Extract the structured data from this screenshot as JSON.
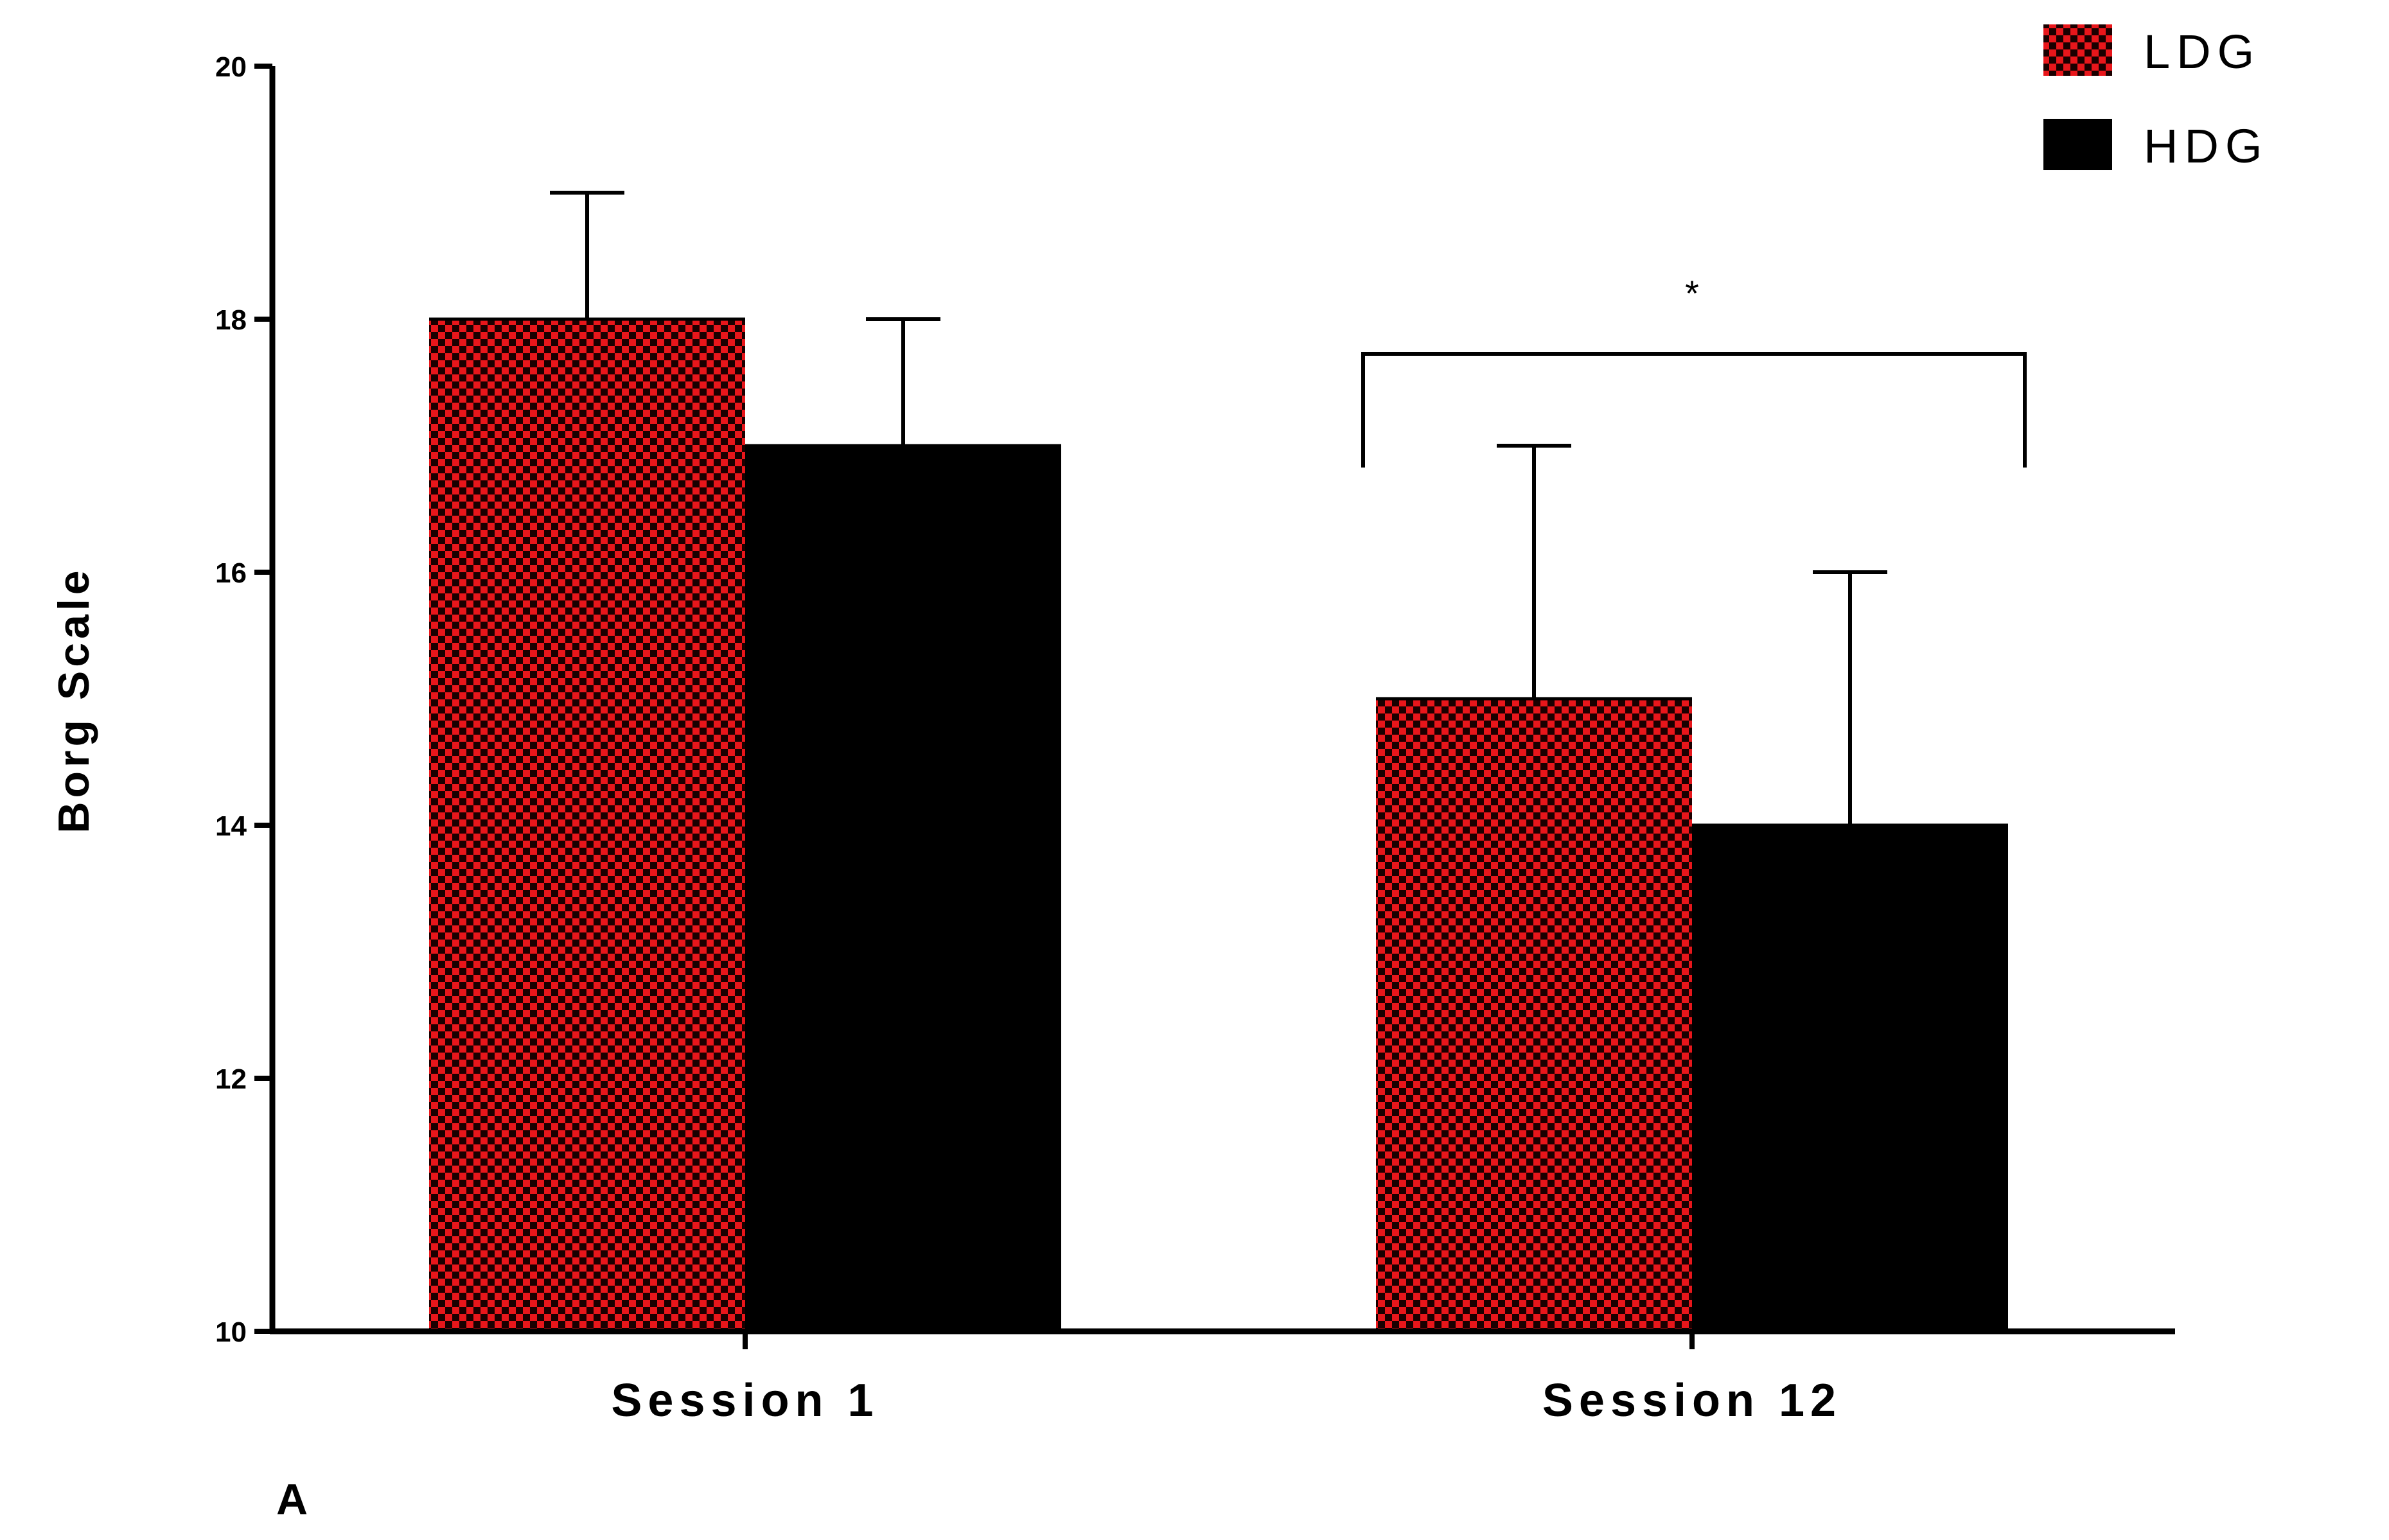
{
  "chart_data": {
    "type": "bar",
    "ylabel": "Borg Scale",
    "ylim": [
      10,
      20
    ],
    "yticks": [
      10,
      12,
      14,
      16,
      18,
      20
    ],
    "categories": [
      "Session 1",
      "Session 12"
    ],
    "series": [
      {
        "name": "LDG",
        "values": [
          18,
          15
        ],
        "error_upper": [
          19,
          17
        ],
        "pattern": "checkerboard",
        "color": "#e8161b"
      },
      {
        "name": "HDG",
        "values": [
          17,
          14
        ],
        "error_upper": [
          18,
          16
        ],
        "pattern": "solid",
        "color": "#000000"
      }
    ],
    "legend_position": "top-right",
    "significance": {
      "category": "Session 12",
      "label": "*"
    },
    "panel_label": "A"
  }
}
